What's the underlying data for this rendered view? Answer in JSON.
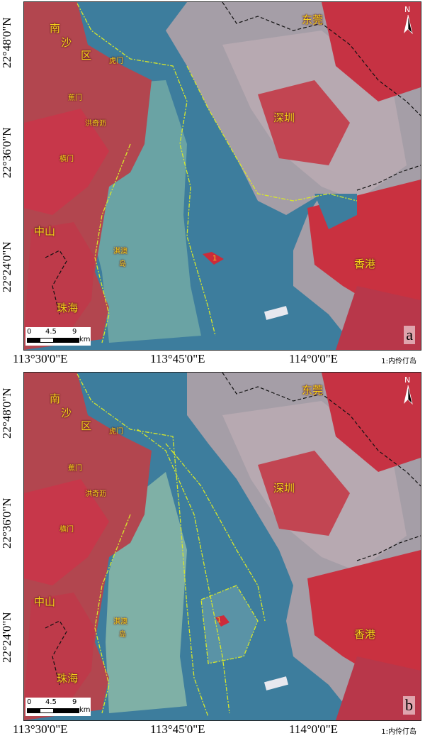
{
  "panels": [
    {
      "id": "a",
      "label": "a",
      "places": {
        "nansha_1": "南",
        "nansha_2": "沙",
        "nansha_3": "区",
        "humen": "虎门",
        "jiaomen": "蕉门",
        "hongqili": "洪奇沥",
        "hengmen": "横门",
        "dongguan": "东莞",
        "shenzhen": "深圳",
        "zhongshan": "中山",
        "qiao_1": "淇澳",
        "qiao_2": "岛",
        "zhuhai": "珠海",
        "hongkong": "香港",
        "island_num": "1"
      },
      "scale": {
        "ticks": [
          "0",
          "4.5",
          "9"
        ],
        "unit": "km"
      },
      "north": "N"
    },
    {
      "id": "b",
      "label": "b",
      "places": {
        "nansha_1": "南",
        "nansha_2": "沙",
        "nansha_3": "区",
        "humen": "虎门",
        "jiaomen": "蕉门",
        "hongqili": "洪奇沥",
        "hengmen": "横门",
        "dongguan": "东莞",
        "shenzhen": "深圳",
        "zhongshan": "中山",
        "qiao_1": "淇澳",
        "qiao_2": "岛",
        "zhuhai": "珠海",
        "hongkong": "香港",
        "island_num": "1"
      },
      "scale": {
        "ticks": [
          "0",
          "4.5",
          "9"
        ],
        "unit": "km"
      },
      "north": "N"
    }
  ],
  "axes": {
    "y_ticks": [
      "22°48'0\"N",
      "22°36'0\"N",
      "22°24'0\"N"
    ],
    "x_ticks": [
      "113°30'0\"E",
      "113°45'0\"E",
      "114°0'0\"E"
    ]
  },
  "legend_text": "1:内伶仃岛",
  "colors": {
    "water": "#3e7d9c",
    "vegetation": "#c8323f",
    "urban": "#a9a6ad",
    "boundary_line": "#d8e82a",
    "label": "#f7d21a"
  }
}
